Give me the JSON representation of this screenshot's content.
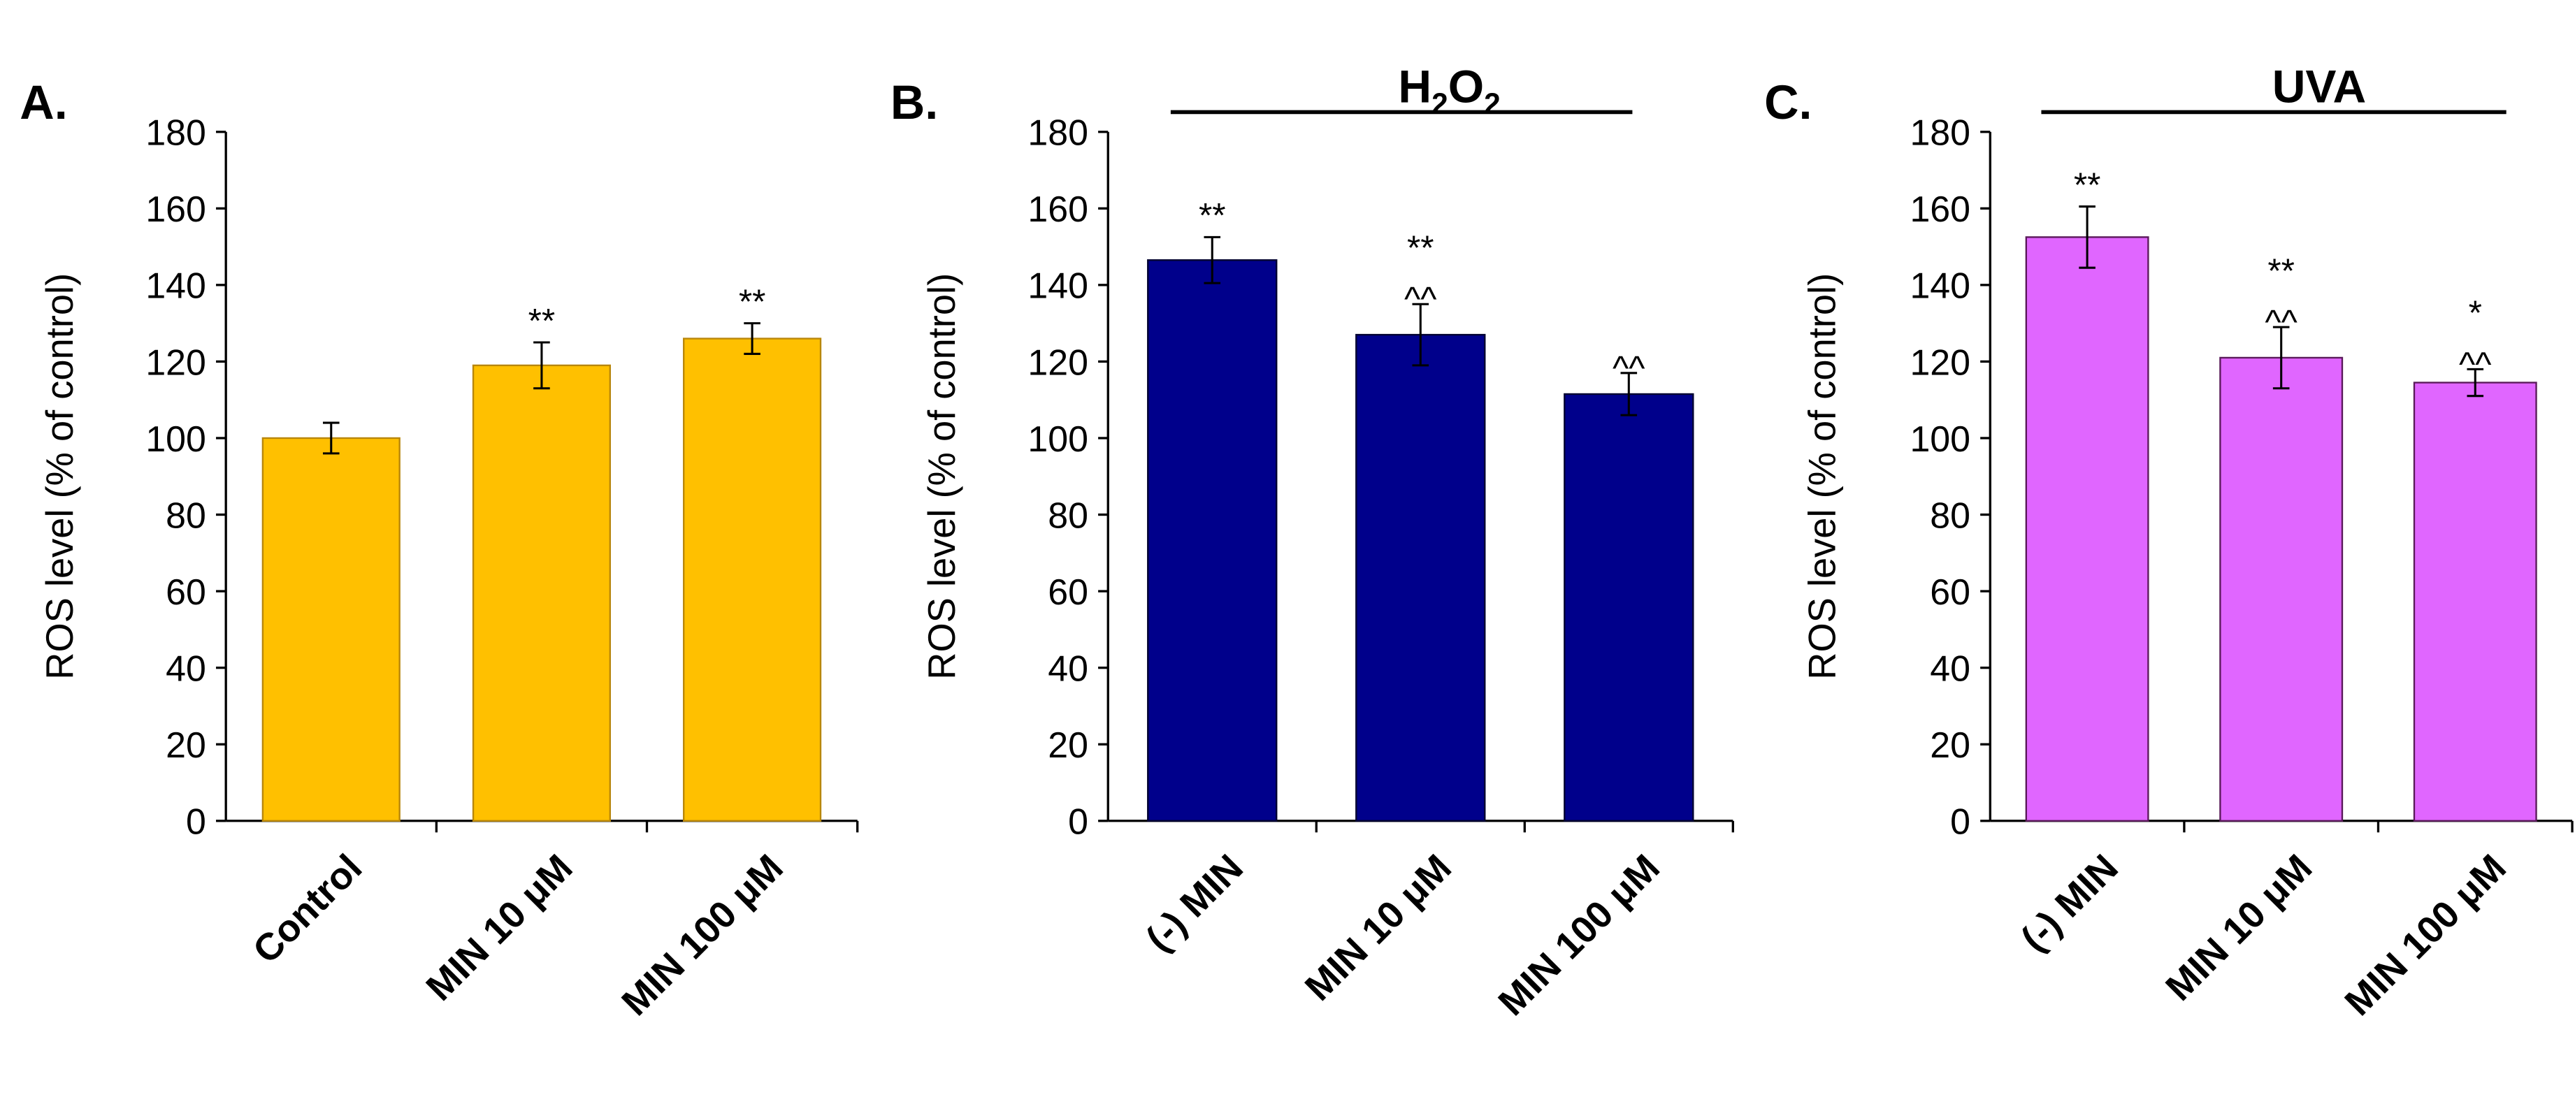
{
  "chart_data": [
    {
      "type": "bar",
      "panel": "A.",
      "title": "",
      "xlabel": "",
      "ylabel": "ROS level (% of control)",
      "ylim": [
        0,
        180
      ],
      "yticks": [
        0,
        20,
        40,
        60,
        80,
        100,
        120,
        140,
        160,
        180
      ],
      "categories": [
        "Control",
        "MIN 10 μM",
        "MIN 100 μM"
      ],
      "values": [
        100,
        119,
        126
      ],
      "errors": [
        4,
        6,
        4
      ],
      "annotations": [
        [],
        [
          "**"
        ],
        [
          "**"
        ]
      ],
      "color": "#FFC000"
    },
    {
      "type": "bar",
      "panel": "B.",
      "title": "H2O2",
      "title_main": "H",
      "title_sub1": "2",
      "title_mid": "O",
      "title_sub2": "2",
      "xlabel": "",
      "ylabel": "ROS level (% of control)",
      "ylim": [
        0,
        180
      ],
      "yticks": [
        0,
        20,
        40,
        60,
        80,
        100,
        120,
        140,
        160,
        180
      ],
      "categories": [
        "(-) MIN",
        "MIN 10 μM",
        "MIN 100 μM"
      ],
      "values": [
        146.5,
        127,
        111.5
      ],
      "errors": [
        6,
        8,
        5.5
      ],
      "annotations": [
        [
          "**"
        ],
        [
          "**",
          "^^"
        ],
        [
          "^^"
        ]
      ],
      "color": "#00008B"
    },
    {
      "type": "bar",
      "panel": "C.",
      "title": "UVA",
      "xlabel": "",
      "ylabel": "ROS level (% of control)",
      "ylim": [
        0,
        180
      ],
      "yticks": [
        0,
        20,
        40,
        60,
        80,
        100,
        120,
        140,
        160,
        180
      ],
      "categories": [
        "(-) MIN",
        "MIN 10 μM",
        "MIN 100 μM"
      ],
      "values": [
        152.5,
        121,
        114.5
      ],
      "errors": [
        8,
        8,
        3.5
      ],
      "annotations": [
        [
          "**"
        ],
        [
          "**",
          "^^"
        ],
        [
          "*",
          "^^"
        ]
      ],
      "color": "#E066FF"
    }
  ]
}
